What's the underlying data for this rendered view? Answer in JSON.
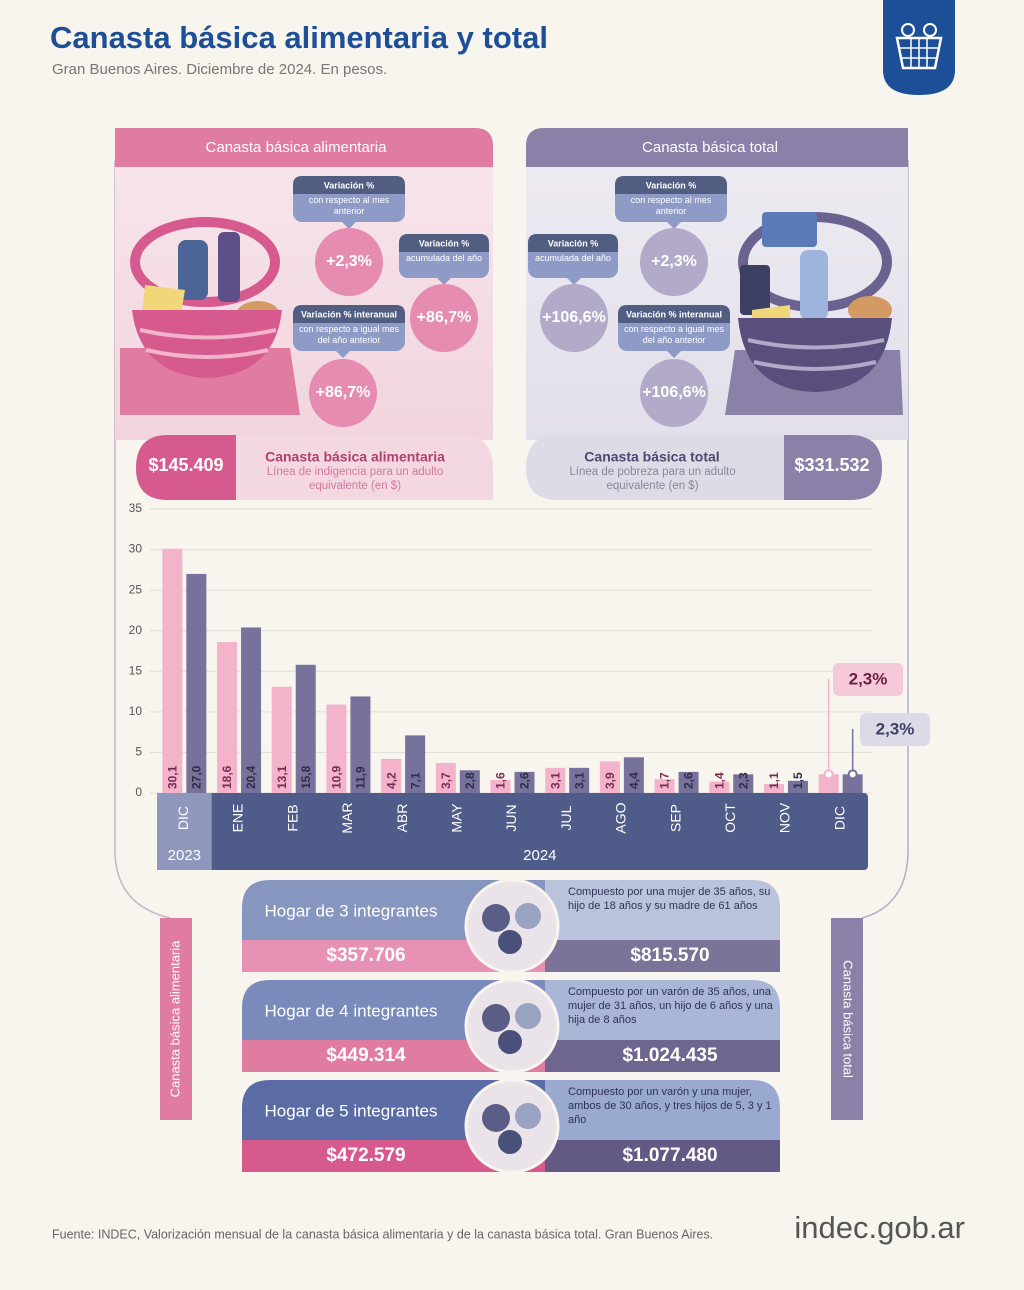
{
  "header": {
    "title": "Canasta básica alimentaria y total",
    "subtitle": "Gran Buenos Aires. Diciembre de 2024. En pesos."
  },
  "panels": [
    {
      "title": "Canasta básica alimentaria",
      "boxes": [
        {
          "label": "Variación %",
          "detail": "con respecto al mes anterior",
          "value": "+2,3%"
        },
        {
          "label": "Variación %",
          "detail": "acumulada del año",
          "value": "+86,7%"
        },
        {
          "label": "Variación % interanual",
          "detail": "con respecto a igual mes del año anterior",
          "value": "+86,7%"
        }
      ],
      "amount": "$145.409",
      "name": "Canasta básica alimentaria",
      "description": "Línea de indigencia para un adulto equivalente (en $)"
    },
    {
      "title": "Canasta básica total",
      "boxes": [
        {
          "label": "Variación %",
          "detail": "con respecto al mes anterior",
          "value": "+2,3%"
        },
        {
          "label": "Variación %",
          "detail": "acumulada del año",
          "value": "+106,6%"
        },
        {
          "label": "Variación % interanual",
          "detail": "con respecto a igual mes del año anterior",
          "value": "+106,6%"
        }
      ],
      "amount": "$331.532",
      "name": "Canasta básica total",
      "description": "Línea de pobreza para un adulto equivalente (en $)"
    }
  ],
  "chart_data": {
    "type": "bar",
    "categories": [
      "DIC",
      "ENE",
      "FEB",
      "MAR",
      "ABR",
      "MAY",
      "JUN",
      "JUL",
      "AGO",
      "SEP",
      "OCT",
      "NOV",
      "DIC"
    ],
    "year_groups": [
      {
        "label": "2023",
        "span": 1
      },
      {
        "label": "2024",
        "span": 12
      }
    ],
    "series": [
      {
        "name": "Canasta básica alimentaria",
        "color": "#f2b3cb",
        "values": [
          30.1,
          18.6,
          13.1,
          10.9,
          4.2,
          3.7,
          1.6,
          3.1,
          3.9,
          1.7,
          1.4,
          1.1,
          2.3
        ],
        "value_labels": [
          "30,1",
          "18,6",
          "13,1",
          "10,9",
          "4,2",
          "3,7",
          "1,6",
          "3,1",
          "3,9",
          "1,7",
          "1,4",
          "1,1",
          "2,3%"
        ]
      },
      {
        "name": "Canasta básica total",
        "color": "#77729c",
        "values": [
          27.0,
          20.4,
          15.8,
          11.9,
          7.1,
          2.8,
          2.6,
          3.1,
          4.4,
          2.6,
          2.3,
          1.5,
          2.3
        ],
        "value_labels": [
          "27,0",
          "20,4",
          "15,8",
          "11,9",
          "7,1",
          "2,8",
          "2,6",
          "3,1",
          "4,4",
          "2,6",
          "2,3",
          "1,5",
          "2,3%"
        ]
      }
    ],
    "ylim": [
      0,
      35
    ],
    "yticks": [
      0,
      5,
      10,
      15,
      20,
      25,
      30,
      35
    ],
    "grid": true
  },
  "households": [
    {
      "title": "Hogar de 3 integrantes",
      "description": "Compuesto por una mujer de 35 años, su hijo de 18 años y su madre de 61 años",
      "cba": "$357.706",
      "cbt": "$815.570"
    },
    {
      "title": "Hogar de 4 integrantes",
      "description": "Compuesto por un varón de 35 años, una mujer de 31 años, un hijo de 6 años y una hija de 8 años",
      "cba": "$449.314",
      "cbt": "$1.024.435"
    },
    {
      "title": "Hogar de 5 integrantes",
      "description": "Compuesto por un varón y una mujer, ambos de 30 años, y tres hijos de 5, 3 y 1 año",
      "cba": "$472.579",
      "cbt": "$1.077.480"
    }
  ],
  "footer": {
    "source": "Fuente: INDEC, Valorización mensual de la canasta básica alimentaria y de la canasta básica total. Gran Buenos Aires.",
    "logo": "indec.gob.ar"
  }
}
